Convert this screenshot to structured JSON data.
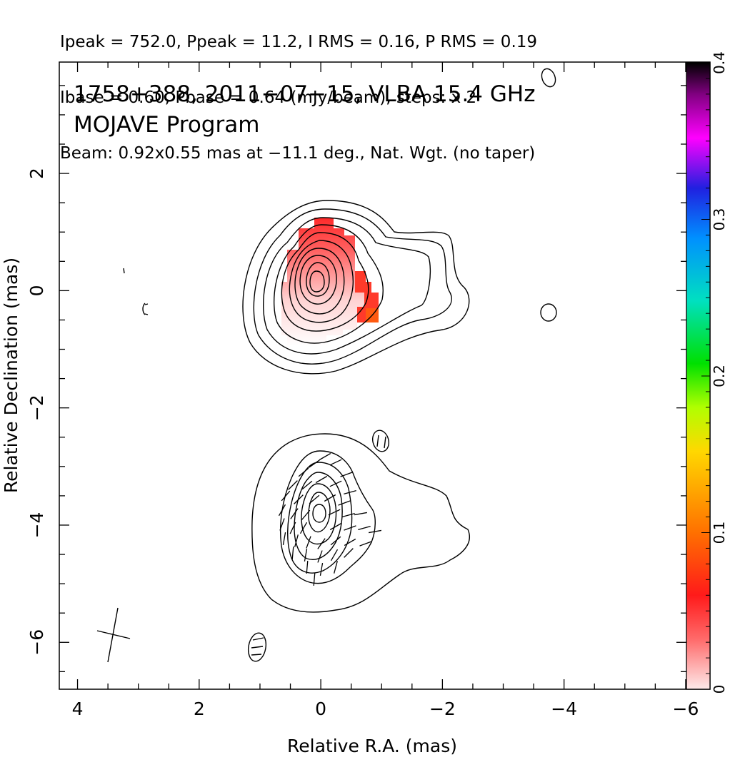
{
  "header": {
    "line1": "Ipeak = 752.0, Ppeak = 11.2, I RMS = 0.16, P RMS = 0.19",
    "line2": "Ibase = 0.60, Pbase = 0.64 (mJy/beam), steps: x 2",
    "line3": "Beam: 0.92x0.55 mas at −11.1 deg., Nat. Wgt. (no taper)"
  },
  "chart_data": {
    "type": "heatmap",
    "title_line1": "1758+388, 2011−07−15, VLBA 15.4 GHz",
    "title_line2": "MOJAVE Program",
    "xlabel": "Relative R.A. (mas)",
    "ylabel": "Relative Declination (mas)",
    "xlim": [
      4.3,
      -6.4
    ],
    "ylim": [
      -6.8,
      3.9
    ],
    "x_ticks": [
      "4",
      "2",
      "0",
      "−2",
      "−4",
      "−6"
    ],
    "x_tick_values": [
      4,
      2,
      0,
      -2,
      -4,
      -6
    ],
    "y_ticks": [
      "2",
      "0",
      "−2",
      "−4",
      "−6"
    ],
    "y_tick_values": [
      2,
      0,
      -2,
      -4,
      -6
    ],
    "colorbar": {
      "range": [
        0,
        0.4
      ],
      "ticks": [
        "0",
        "0.1",
        "0.2",
        "0.3",
        "0.4"
      ],
      "tick_values": [
        0,
        0.1,
        0.2,
        0.3,
        0.4
      ],
      "colors": [
        "#fde9e9",
        "#ff2020",
        "#ff8000",
        "#ffd800",
        "#a0ff00",
        "#00e000",
        "#00e0e0",
        "#0080ff",
        "#2020e0",
        "#ff00ff",
        "#800080",
        "#000000"
      ]
    },
    "components": [
      {
        "panel": "upper",
        "x_center": 0.05,
        "y_center": 0.05
      },
      {
        "panel": "lower",
        "x_center": -0.15,
        "y_center": -3.8
      }
    ]
  }
}
